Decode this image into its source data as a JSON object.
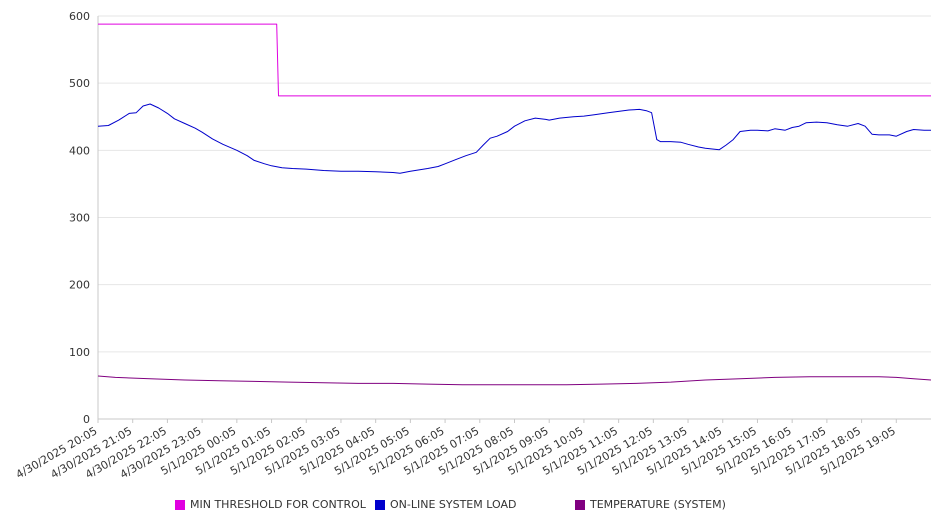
{
  "chart_data": {
    "type": "line",
    "title": "",
    "xlabel": "",
    "ylabel": "",
    "ylim": [
      0,
      600
    ],
    "y_ticks": [
      0,
      100,
      200,
      300,
      400,
      500,
      600
    ],
    "x_range": [
      0,
      24
    ],
    "x_tick_labels": [
      "4/30/2025 20:05",
      "4/30/2025 21:05",
      "4/30/2025 22:05",
      "4/30/2025 23:05",
      "5/1/2025 00:05",
      "5/1/2025 01:05",
      "5/1/2025 02:05",
      "5/1/2025 03:05",
      "5/1/2025 04:05",
      "5/1/2025 05:05",
      "5/1/2025 06:05",
      "5/1/2025 07:05",
      "5/1/2025 08:05",
      "5/1/2025 09:05",
      "5/1/2025 10:05",
      "5/1/2025 11:05",
      "5/1/2025 12:05",
      "5/1/2025 13:05",
      "5/1/2025 14:05",
      "5/1/2025 15:05",
      "5/1/2025 16:05",
      "5/1/2025 17:05",
      "5/1/2025 18:05",
      "5/1/2025 19:05"
    ],
    "grid": "horizontal",
    "legend_position": "bottom",
    "series": [
      {
        "name": "MIN THRESHOLD FOR CONTROL",
        "color": "#e000e0",
        "points": [
          [
            0,
            588
          ],
          [
            5.15,
            588
          ],
          [
            5.2,
            481
          ],
          [
            24,
            481
          ]
        ]
      },
      {
        "name": "ON-LINE SYSTEM LOAD",
        "color": "#0000cc",
        "points": [
          [
            0,
            436
          ],
          [
            0.3,
            437
          ],
          [
            0.6,
            445
          ],
          [
            0.9,
            455
          ],
          [
            1.1,
            456
          ],
          [
            1.3,
            466
          ],
          [
            1.5,
            469
          ],
          [
            1.75,
            463
          ],
          [
            2.0,
            455
          ],
          [
            2.2,
            447
          ],
          [
            2.5,
            440
          ],
          [
            2.8,
            433
          ],
          [
            3.0,
            427
          ],
          [
            3.3,
            417
          ],
          [
            3.6,
            409
          ],
          [
            4.0,
            400
          ],
          [
            4.3,
            392
          ],
          [
            4.5,
            385
          ],
          [
            4.8,
            380
          ],
          [
            5.0,
            377
          ],
          [
            5.3,
            374
          ],
          [
            5.6,
            373
          ],
          [
            6.0,
            372
          ],
          [
            6.5,
            370
          ],
          [
            7.0,
            369
          ],
          [
            7.5,
            369
          ],
          [
            8.0,
            368
          ],
          [
            8.5,
            367
          ],
          [
            8.7,
            366
          ],
          [
            9.0,
            369
          ],
          [
            9.5,
            373
          ],
          [
            9.8,
            376
          ],
          [
            10.0,
            380
          ],
          [
            10.3,
            386
          ],
          [
            10.6,
            392
          ],
          [
            10.9,
            397
          ],
          [
            11.1,
            408
          ],
          [
            11.3,
            418
          ],
          [
            11.5,
            421
          ],
          [
            11.8,
            428
          ],
          [
            12.0,
            436
          ],
          [
            12.3,
            444
          ],
          [
            12.6,
            448
          ],
          [
            12.9,
            446
          ],
          [
            13.0,
            445
          ],
          [
            13.3,
            448
          ],
          [
            13.7,
            450
          ],
          [
            14.0,
            451
          ],
          [
            14.3,
            453
          ],
          [
            14.7,
            456
          ],
          [
            15.0,
            458
          ],
          [
            15.3,
            460
          ],
          [
            15.6,
            461
          ],
          [
            15.8,
            459
          ],
          [
            15.95,
            456
          ],
          [
            16.1,
            416
          ],
          [
            16.2,
            413
          ],
          [
            16.5,
            413
          ],
          [
            16.8,
            412
          ],
          [
            17.0,
            409
          ],
          [
            17.3,
            405
          ],
          [
            17.5,
            403
          ],
          [
            17.7,
            402
          ],
          [
            17.9,
            401
          ],
          [
            18.1,
            408
          ],
          [
            18.3,
            416
          ],
          [
            18.5,
            428
          ],
          [
            18.8,
            430
          ],
          [
            19.0,
            430
          ],
          [
            19.3,
            429
          ],
          [
            19.5,
            432
          ],
          [
            19.8,
            430
          ],
          [
            20.0,
            434
          ],
          [
            20.2,
            436
          ],
          [
            20.4,
            441
          ],
          [
            20.7,
            442
          ],
          [
            21.0,
            441
          ],
          [
            21.3,
            438
          ],
          [
            21.6,
            436
          ],
          [
            21.9,
            440
          ],
          [
            22.1,
            436
          ],
          [
            22.3,
            424
          ],
          [
            22.5,
            423
          ],
          [
            22.8,
            423
          ],
          [
            23.0,
            421
          ],
          [
            23.3,
            428
          ],
          [
            23.5,
            431
          ],
          [
            23.8,
            430
          ],
          [
            24.0,
            430
          ]
        ]
      },
      {
        "name": "TEMPERATURE (SYSTEM)",
        "color": "#800080",
        "points": [
          [
            0,
            64
          ],
          [
            0.5,
            62
          ],
          [
            1.5,
            60
          ],
          [
            2.5,
            58
          ],
          [
            3.5,
            57
          ],
          [
            4.5,
            56
          ],
          [
            5.5,
            55
          ],
          [
            6.5,
            54
          ],
          [
            7.5,
            53
          ],
          [
            8.5,
            53
          ],
          [
            9.5,
            52
          ],
          [
            10.5,
            51
          ],
          [
            11.5,
            51
          ],
          [
            12.5,
            51
          ],
          [
            13.5,
            51
          ],
          [
            14.5,
            52
          ],
          [
            15.5,
            53
          ],
          [
            16.5,
            55
          ],
          [
            17.5,
            58
          ],
          [
            18.5,
            60
          ],
          [
            19.5,
            62
          ],
          [
            20.5,
            63
          ],
          [
            21.5,
            63
          ],
          [
            22.5,
            63
          ],
          [
            23.0,
            62
          ],
          [
            23.5,
            60
          ],
          [
            24.0,
            58
          ]
        ]
      }
    ]
  }
}
